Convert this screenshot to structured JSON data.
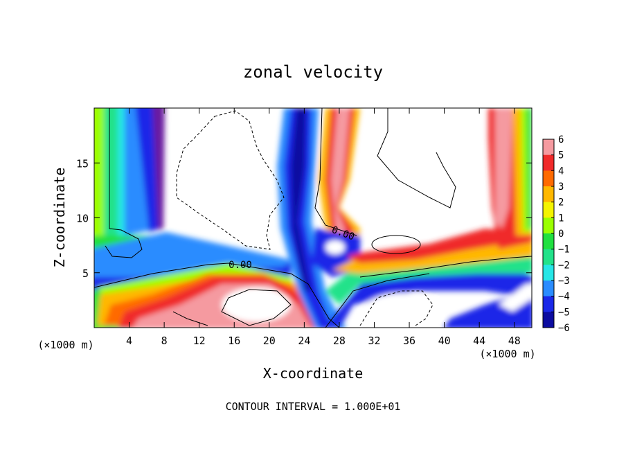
{
  "chart_data": {
    "type": "heatmap",
    "title": "zonal velocity",
    "xlabel": "X-coordinate",
    "ylabel": "Z-coordinate",
    "x_unit_label": "(×1000 m)",
    "x_unit_label_right": "(×1000 m)",
    "xlim": [
      0,
      50
    ],
    "ylim": [
      0,
      20
    ],
    "x_ticks": [
      4,
      8,
      12,
      16,
      20,
      24,
      28,
      32,
      36,
      40,
      44,
      48
    ],
    "y_ticks": [
      5,
      10,
      15
    ],
    "colorbar": {
      "levels": [
        6,
        5,
        4,
        3,
        2,
        1,
        0,
        -1,
        -2,
        -3,
        -4,
        -5,
        -6
      ],
      "colors": [
        "#f59aa0",
        "#f02a2a",
        "#ff6a00",
        "#ffb800",
        "#f4f400",
        "#9bff00",
        "#20e040",
        "#22e28a",
        "#26e6e6",
        "#2a8cff",
        "#1a28e8",
        "#0c0ca0",
        "#6a1aa0"
      ]
    },
    "contour_labels": [
      "0.00",
      "0.00"
    ],
    "footer": "CONTOUR INTERVAL = 1.000E+01",
    "grid": false,
    "legend_position": "right"
  }
}
